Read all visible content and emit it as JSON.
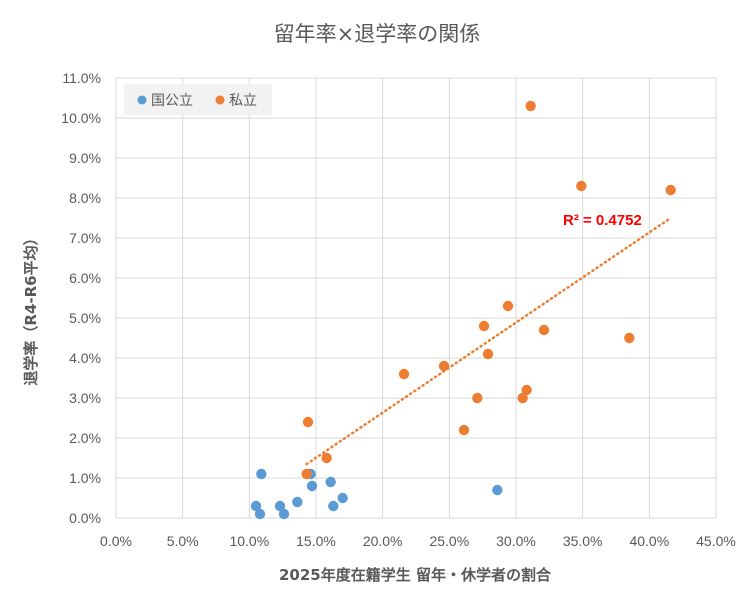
{
  "chart_data": {
    "type": "scatter",
    "title": "留年率×退学率の関係",
    "xlabel": "2025年度在籍学生 留年・休学者の割合",
    "ylabel": "退学率（R4-R6平均）",
    "xlim": [
      0,
      45
    ],
    "ylim": [
      0,
      11
    ],
    "x_ticks": [
      "0.0%",
      "5.0%",
      "10.0%",
      "15.0%",
      "20.0%",
      "25.0%",
      "30.0%",
      "35.0%",
      "40.0%",
      "45.0%"
    ],
    "y_ticks": [
      "0.0%",
      "1.0%",
      "2.0%",
      "3.0%",
      "4.0%",
      "5.0%",
      "6.0%",
      "7.0%",
      "8.0%",
      "9.0%",
      "10.0%",
      "11.0%"
    ],
    "grid": true,
    "legend_position": "top-left",
    "series": [
      {
        "name": "国公立",
        "color": "#5b9bd5",
        "points": [
          {
            "x": 10.5,
            "y": 0.3
          },
          {
            "x": 10.8,
            "y": 0.1
          },
          {
            "x": 10.9,
            "y": 1.1
          },
          {
            "x": 12.3,
            "y": 0.3
          },
          {
            "x": 12.6,
            "y": 0.1
          },
          {
            "x": 13.6,
            "y": 0.4
          },
          {
            "x": 14.6,
            "y": 1.1
          },
          {
            "x": 14.7,
            "y": 0.8
          },
          {
            "x": 16.1,
            "y": 0.9
          },
          {
            "x": 16.3,
            "y": 0.3
          },
          {
            "x": 17.0,
            "y": 0.5
          },
          {
            "x": 28.6,
            "y": 0.7
          }
        ]
      },
      {
        "name": "私立",
        "color": "#ed7d31",
        "points": [
          {
            "x": 14.3,
            "y": 1.1
          },
          {
            "x": 14.4,
            "y": 2.4
          },
          {
            "x": 15.8,
            "y": 1.5
          },
          {
            "x": 21.6,
            "y": 3.6
          },
          {
            "x": 24.6,
            "y": 3.8
          },
          {
            "x": 26.1,
            "y": 2.2
          },
          {
            "x": 27.1,
            "y": 3.0
          },
          {
            "x": 27.6,
            "y": 4.8
          },
          {
            "x": 27.9,
            "y": 4.1
          },
          {
            "x": 29.4,
            "y": 5.3
          },
          {
            "x": 30.5,
            "y": 3.0
          },
          {
            "x": 30.8,
            "y": 3.2
          },
          {
            "x": 31.1,
            "y": 10.3
          },
          {
            "x": 32.1,
            "y": 4.7
          },
          {
            "x": 34.9,
            "y": 8.3
          },
          {
            "x": 38.5,
            "y": 4.5
          },
          {
            "x": 41.6,
            "y": 8.2
          }
        ]
      }
    ],
    "trendline": {
      "series": "私立",
      "style": "dotted",
      "color": "#ed7d31",
      "from": {
        "x": 14.3,
        "y": 1.35
      },
      "to": {
        "x": 41.6,
        "y": 7.5
      },
      "label": "R² = 0.4752",
      "label_color": "#ff0000"
    }
  }
}
